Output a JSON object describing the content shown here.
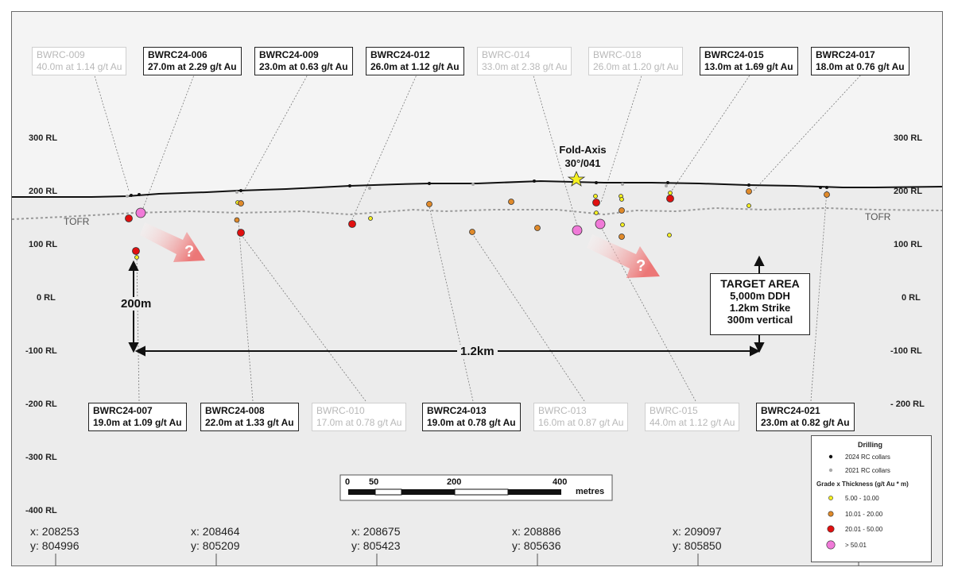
{
  "labels_top": [
    {
      "hole": "BWRC-009",
      "text": "40.0m at 1.14 g/t Au",
      "style": "old"
    },
    {
      "hole": "BWRC24-006",
      "text": "27.0m at 2.29 g/t Au",
      "style": "new"
    },
    {
      "hole": "BWRC24-009",
      "text": "23.0m at 0.63 g/t Au",
      "style": "new"
    },
    {
      "hole": "BWRC24-012",
      "text": "26.0m at 1.12 g/t Au",
      "style": "new"
    },
    {
      "hole": "BWRC-014",
      "text": "33.0m at 2.38 g/t Au",
      "style": "old"
    },
    {
      "hole": "BWRC-018",
      "text": "26.0m at 1.20 g/t Au",
      "style": "old"
    },
    {
      "hole": "BWRC24-015",
      "text": "13.0m at 1.69 g/t Au",
      "style": "new"
    },
    {
      "hole": "BWRC24-017",
      "text": "18.0m at 0.76 g/t Au",
      "style": "new"
    }
  ],
  "labels_bottom": [
    {
      "hole": "BWRC24-007",
      "text": "19.0m at 1.09 g/t Au",
      "style": "new"
    },
    {
      "hole": "BWRC24-008",
      "text": "22.0m at 1.33 g/t Au",
      "style": "new"
    },
    {
      "hole": "BWRC-010",
      "text": "17.0m at 0.78 g/t Au",
      "style": "old"
    },
    {
      "hole": "BWRC24-013",
      "text": "19.0m at 0.78 g/t Au",
      "style": "new"
    },
    {
      "hole": "BWRC-013",
      "text": "16.0m at 0.87 g/t Au",
      "style": "old"
    },
    {
      "hole": "BWRC-015",
      "text": "44.0m at 1.12 g/t Au",
      "style": "old"
    },
    {
      "hole": "BWRC24-021",
      "text": "23.0m at 0.82 g/t Au",
      "style": "new"
    }
  ],
  "rl_left": [
    "300 RL",
    "200 RL",
    "100 RL",
    "0 RL",
    "-100 RL",
    "-200 RL",
    "-300 RL",
    "-400 RL"
  ],
  "rl_right": [
    "300 RL",
    "200 RL",
    "100 RL",
    "0 RL",
    "-100 RL",
    "- 200 RL"
  ],
  "tofr_label": "TOFR",
  "fold_axis": {
    "title": "Fold-Axis",
    "value": "30°/041"
  },
  "target_area": {
    "title": "TARGET AREA",
    "lines": [
      "5,000m DDH",
      "1.2km Strike",
      "300m vertical"
    ]
  },
  "dim_vertical": "200m",
  "dim_horizontal": "1.2km",
  "question_mark": "?",
  "scale_bar": {
    "ticks": [
      "0",
      "50",
      "200",
      "400"
    ],
    "unit": "metres"
  },
  "coords": [
    {
      "x": "x: 208253",
      "y": "y: 804996"
    },
    {
      "x": "x: 208464",
      "y": "y: 805209"
    },
    {
      "x": "x: 208675",
      "y": "y: 805423"
    },
    {
      "x": "x: 208886",
      "y": "y: 805636"
    },
    {
      "x": "x: 209097",
      "y": "y: 805850"
    }
  ],
  "legend": {
    "drilling_title": "Drilling",
    "collars_2024": "2024 RC collars",
    "collars_2021": "2021 RC collars",
    "gxt_title": "Grade x Thickness (g/t Au * m)",
    "classes": [
      {
        "label": "5.00 - 10.00",
        "color": "#f5f020"
      },
      {
        "label": "10.01 - 20.00",
        "color": "#e08a2a"
      },
      {
        "label": "20.01 - 50.00",
        "color": "#e01010"
      },
      {
        "label": "> 50.01",
        "color": "#f07ad8"
      }
    ]
  },
  "colors": {
    "background": "#f4f4f4",
    "surface": "#111111",
    "tofr_line": "#999999",
    "arrow_fill": "#f3a0a0"
  }
}
